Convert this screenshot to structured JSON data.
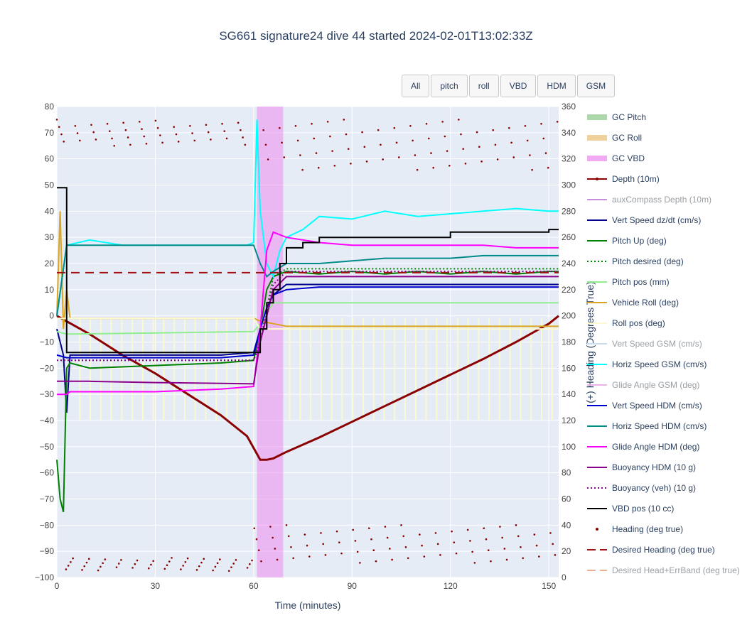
{
  "chart_data": {
    "type": "line",
    "title": "SG661 signature24 dive 44 started 2024-02-01T13:02:33Z",
    "xlabel": "Time (minutes)",
    "ylabel": "",
    "y2label": "(+) Heading (Degrees True)",
    "xlim": [
      0,
      153
    ],
    "ylim": [
      -100,
      80
    ],
    "y2lim": [
      0,
      360
    ],
    "xticks": [
      0,
      30,
      60,
      90,
      120,
      150
    ],
    "yticks": [
      80,
      70,
      60,
      50,
      40,
      30,
      20,
      10,
      0,
      -10,
      -20,
      -30,
      -40,
      -50,
      -60,
      -70,
      -80,
      -90,
      -100
    ],
    "y2ticks": [
      360,
      340,
      320,
      300,
      280,
      260,
      240,
      220,
      200,
      180,
      160,
      140,
      120,
      100,
      80,
      60,
      40,
      20,
      0
    ],
    "ytick_labels": [
      "80",
      "70",
      "60",
      "50",
      "40",
      "30",
      "20",
      "10",
      "0",
      "−10",
      "−20",
      "−30",
      "−40",
      "−50",
      "−60",
      "−70",
      "−80",
      "−90",
      "−100"
    ],
    "grid": true,
    "legend_position": "right",
    "buttons": [
      "All",
      "pitch",
      "roll",
      "VBD",
      "HDM",
      "GSM"
    ],
    "gc_vbd_band": [
      61,
      69
    ],
    "series": [
      {
        "name": "GC Pitch",
        "color": "#8fc98f",
        "style": "band",
        "legendonly": false
      },
      {
        "name": "GC Roll",
        "color": "#e8c27a",
        "style": "band"
      },
      {
        "name": "GC VBD",
        "color": "#f08cf0",
        "style": "band"
      },
      {
        "name": "Depth (10m)",
        "color": "#8b0000",
        "style": "line-marker",
        "x": [
          0,
          10,
          20,
          30,
          40,
          50,
          58,
          62,
          64,
          66,
          70,
          80,
          90,
          100,
          110,
          120,
          130,
          140,
          150,
          153
        ],
        "y": [
          0,
          -7,
          -15,
          -22,
          -30,
          -38,
          -46,
          -55,
          -55,
          -54.5,
          -52,
          -46.5,
          -40.5,
          -34.5,
          -28.5,
          -22.5,
          -16.5,
          -10,
          -3,
          0
        ]
      },
      {
        "name": "auxCompass Depth (10m)",
        "color": "#c88fe0",
        "style": "line",
        "muted": true
      },
      {
        "name": "Vert Speed dz/dt (cm/s)",
        "color": "#00008b",
        "style": "line",
        "x": [
          0,
          2,
          3,
          4,
          10,
          30,
          50,
          60,
          62,
          64,
          66,
          70,
          80,
          90,
          100,
          110,
          120,
          130,
          140,
          150,
          153
        ],
        "y": [
          -5,
          -15,
          -37,
          -15,
          -15,
          -15,
          -15,
          -14,
          -5,
          3,
          8,
          12,
          12,
          12,
          12,
          12,
          12,
          12,
          12,
          12,
          12
        ]
      },
      {
        "name": "Pitch Up (deg)",
        "color": "#008000",
        "style": "line",
        "x": [
          0,
          1,
          2,
          3,
          4,
          10,
          30,
          50,
          60,
          62,
          64,
          66,
          70,
          80,
          90,
          100,
          110,
          120,
          130,
          140,
          150,
          153
        ],
        "y": [
          -55,
          -70,
          -75,
          -20,
          -18,
          -20,
          -19,
          -18,
          -17,
          -5,
          10,
          15,
          17,
          16,
          17,
          16,
          17,
          16,
          17,
          16,
          17,
          17
        ]
      },
      {
        "name": "Pitch desired (deg)",
        "color": "#008000",
        "style": "dot",
        "x": [
          0,
          3,
          60,
          62,
          66,
          70,
          153
        ],
        "y": [
          -17,
          -17,
          -17,
          -10,
          15,
          18,
          18
        ]
      },
      {
        "name": "Pitch pos (mm)",
        "color": "#90ee90",
        "style": "line",
        "x": [
          0,
          3,
          60,
          62,
          66,
          153
        ],
        "y": [
          -6,
          -7,
          -6,
          -3,
          5,
          5
        ]
      },
      {
        "name": "Vehicle Roll (deg)",
        "color": "#daa520",
        "style": "line",
        "x": [
          0,
          1,
          2,
          3,
          4,
          6,
          60,
          62,
          66,
          70,
          153
        ],
        "y": [
          0,
          40,
          -5,
          10,
          -1,
          -1,
          -1,
          -2,
          -3,
          -4,
          -4
        ]
      },
      {
        "name": "Roll pos (deg)",
        "color": "#fafad2",
        "style": "line",
        "x": [
          0,
          3,
          60,
          62,
          153
        ],
        "y": [
          -1,
          -1,
          -1,
          -5,
          -5
        ]
      },
      {
        "name": "Vert Speed GSM (cm/s)",
        "color": "#c8dcf0",
        "style": "line",
        "muted": true
      },
      {
        "name": "Horiz Speed GSM (cm/s)",
        "color": "#00ffff",
        "style": "line",
        "x": [
          0,
          3,
          10,
          20,
          30,
          40,
          50,
          58,
          60,
          61,
          62,
          64,
          66,
          68,
          70,
          75,
          80,
          90,
          100,
          110,
          120,
          130,
          140,
          150,
          153
        ],
        "y": [
          0,
          27,
          29,
          27,
          27,
          27,
          27,
          27,
          28,
          75,
          40,
          20,
          15,
          25,
          30,
          33,
          38,
          37,
          40,
          38,
          39,
          40,
          41,
          40,
          40
        ]
      },
      {
        "name": "Glide Angle GSM (deg)",
        "color": "#e8b4e8",
        "style": "line",
        "muted": true
      },
      {
        "name": "Vert Speed HDM (cm/s)",
        "color": "#0000cd",
        "style": "line",
        "x": [
          0,
          3,
          10,
          30,
          50,
          60,
          62,
          64,
          66,
          70,
          80,
          90,
          100,
          110,
          120,
          130,
          140,
          150,
          153
        ],
        "y": [
          -15,
          -16,
          -16,
          -16,
          -16,
          -15,
          -5,
          3,
          8,
          10,
          11,
          11,
          11,
          11,
          11,
          11,
          11,
          11,
          11
        ]
      },
      {
        "name": "Horiz Speed HDM (cm/s)",
        "color": "#008b8b",
        "style": "line",
        "x": [
          0,
          3,
          10,
          30,
          50,
          60,
          62,
          64,
          66,
          70,
          80,
          90,
          100,
          110,
          120,
          130,
          140,
          150,
          153
        ],
        "y": [
          0,
          27,
          27,
          27,
          27,
          27,
          20,
          15,
          17,
          20,
          20,
          21,
          22,
          22,
          22,
          23,
          23,
          23,
          23
        ]
      },
      {
        "name": "Glide Angle HDM (deg)",
        "color": "#ff00ff",
        "style": "line",
        "x": [
          0,
          3,
          4,
          10,
          30,
          50,
          60,
          62,
          64,
          66,
          70,
          80,
          90,
          100,
          110,
          120,
          130,
          140,
          150,
          153
        ],
        "y": [
          -30,
          -30,
          -29,
          -29,
          -29,
          -28,
          -27,
          -5,
          25,
          32,
          30,
          28,
          27,
          27,
          27,
          27,
          27,
          26,
          26,
          26
        ]
      },
      {
        "name": "Buoyancy HDM (10 g)",
        "color": "#8b008b",
        "style": "line",
        "x": [
          0,
          3,
          10,
          30,
          50,
          60,
          62,
          66,
          70,
          80,
          90,
          100,
          110,
          120,
          130,
          140,
          150,
          153
        ],
        "y": [
          -25,
          -25,
          -25,
          -25.5,
          -25.8,
          -26,
          -10,
          10,
          15,
          15,
          15,
          15,
          15,
          15,
          15,
          15,
          15,
          15
        ]
      },
      {
        "name": "Buoyancy (veh) (10 g)",
        "color": "#8b008b",
        "style": "dot",
        "x": [
          0,
          3,
          60,
          62,
          66,
          70,
          153
        ],
        "y": [
          -17,
          -17,
          -17,
          -10,
          12,
          17,
          17
        ]
      },
      {
        "name": "VBD pos (10 cc)",
        "color": "#000000",
        "style": "step",
        "x": [
          0,
          2,
          3,
          60,
          62,
          64,
          66,
          68,
          70,
          75,
          80,
          100,
          120,
          140,
          150,
          153
        ],
        "y": [
          49,
          49,
          -14,
          -14,
          -5,
          5,
          10,
          20,
          26,
          28,
          30,
          30,
          32,
          32,
          33,
          33
        ]
      },
      {
        "name": "Heading (deg true)",
        "color": "#8b0000",
        "style": "markers",
        "axis": "y2"
      },
      {
        "name": "Desired Heading (deg true)",
        "color": "#a01010",
        "style": "dash",
        "axis": "y2",
        "x": [
          0,
          153
        ],
        "y": [
          233,
          233
        ]
      },
      {
        "name": "Desired Head+ErrBand (deg true)",
        "color": "#e8b090",
        "style": "dash",
        "axis": "y2",
        "muted": true
      }
    ]
  }
}
